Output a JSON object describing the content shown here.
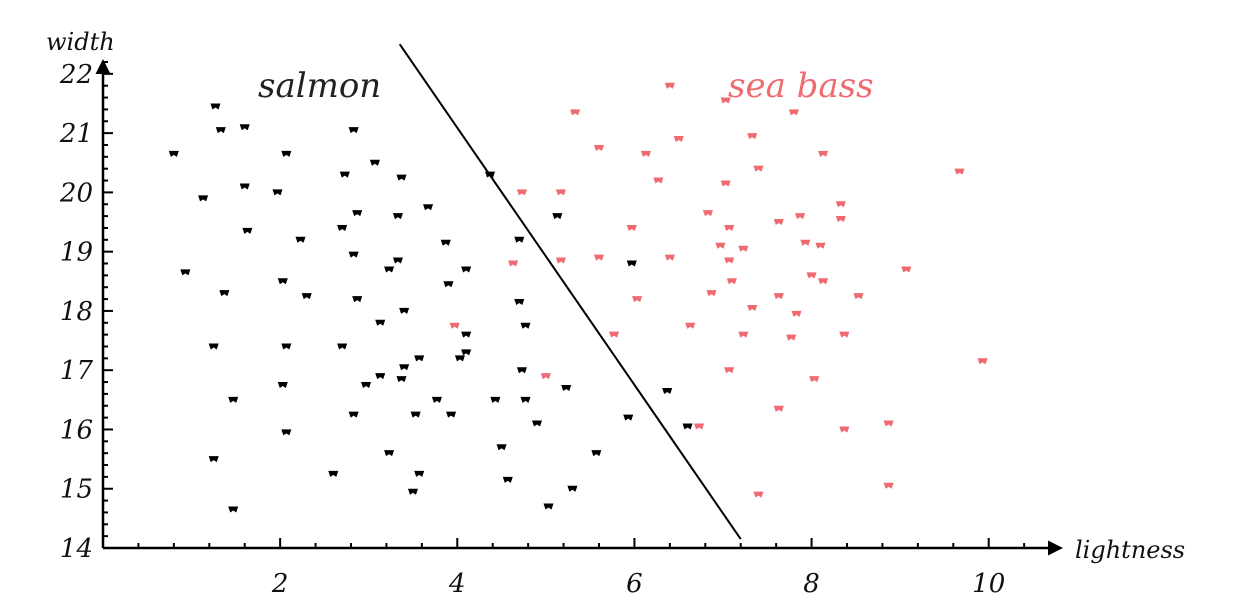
{
  "chart_data": {
    "type": "scatter",
    "xlabel": "lightness",
    "ylabel": "width",
    "xlim": [
      0,
      10.5
    ],
    "ylim": [
      14,
      22.2
    ],
    "xticks": [
      2,
      4,
      6,
      8,
      10
    ],
    "yticks": [
      14,
      15,
      16,
      17,
      18,
      19,
      20,
      21,
      22
    ],
    "annotations": [
      {
        "text": "salmon",
        "color": "#222222"
      },
      {
        "text": "sea bass",
        "color": "#f06a72"
      }
    ],
    "decision_boundary": {
      "x1": 3.35,
      "y1": 22.5,
      "x2": 7.2,
      "y2": 14.15
    },
    "series": [
      {
        "color": "#000000",
        "points": [
          [
            1.27,
            21.45
          ],
          [
            1.33,
            21.05
          ],
          [
            1.6,
            21.1
          ],
          [
            0.8,
            20.65
          ],
          [
            1.13,
            19.9
          ],
          [
            1.6,
            20.1
          ],
          [
            1.63,
            19.35
          ],
          [
            0.93,
            18.65
          ],
          [
            1.37,
            18.3
          ],
          [
            1.25,
            17.4
          ],
          [
            1.47,
            16.5
          ],
          [
            1.25,
            15.5
          ],
          [
            1.47,
            14.65
          ],
          [
            2.07,
            20.65
          ],
          [
            1.97,
            20.0
          ],
          [
            2.23,
            19.2
          ],
          [
            2.03,
            18.5
          ],
          [
            2.3,
            18.25
          ],
          [
            2.07,
            17.4
          ],
          [
            2.03,
            16.75
          ],
          [
            2.07,
            15.95
          ],
          [
            2.6,
            15.25
          ],
          [
            2.83,
            21.05
          ],
          [
            2.73,
            20.3
          ],
          [
            2.87,
            19.65
          ],
          [
            2.7,
            19.4
          ],
          [
            2.83,
            18.95
          ],
          [
            2.87,
            18.2
          ],
          [
            2.7,
            17.4
          ],
          [
            2.83,
            16.25
          ],
          [
            3.07,
            20.5
          ],
          [
            3.23,
            18.7
          ],
          [
            3.33,
            18.85
          ],
          [
            3.13,
            17.8
          ],
          [
            2.97,
            16.75
          ],
          [
            3.13,
            16.9
          ],
          [
            3.23,
            15.6
          ],
          [
            3.37,
            20.25
          ],
          [
            3.33,
            19.6
          ],
          [
            3.4,
            18.0
          ],
          [
            3.37,
            16.85
          ],
          [
            3.4,
            17.05
          ],
          [
            3.5,
            14.95
          ],
          [
            3.53,
            16.25
          ],
          [
            3.57,
            15.25
          ],
          [
            3.57,
            17.2
          ],
          [
            3.67,
            19.75
          ],
          [
            3.77,
            16.5
          ],
          [
            3.87,
            19.15
          ],
          [
            3.9,
            18.45
          ],
          [
            3.93,
            16.25
          ],
          [
            4.03,
            17.2
          ],
          [
            4.1,
            17.3
          ],
          [
            4.1,
            17.6
          ],
          [
            4.1,
            18.7
          ],
          [
            4.37,
            20.3
          ],
          [
            4.43,
            16.5
          ],
          [
            4.5,
            15.7
          ],
          [
            4.57,
            15.15
          ],
          [
            4.7,
            19.2
          ],
          [
            4.7,
            18.15
          ],
          [
            4.73,
            17.0
          ],
          [
            4.77,
            17.75
          ],
          [
            4.77,
            16.5
          ],
          [
            4.9,
            16.1
          ],
          [
            5.03,
            14.7
          ],
          [
            5.13,
            19.6
          ],
          [
            5.23,
            16.7
          ],
          [
            5.3,
            15.0
          ],
          [
            5.57,
            15.6
          ],
          [
            5.93,
            16.2
          ],
          [
            5.97,
            18.8
          ],
          [
            6.37,
            16.65
          ],
          [
            6.6,
            16.05
          ]
        ]
      },
      {
        "color": "#f06a72",
        "points": [
          [
            6.4,
            21.8
          ],
          [
            7.03,
            21.55
          ],
          [
            7.8,
            21.35
          ],
          [
            5.33,
            21.35
          ],
          [
            5.6,
            20.75
          ],
          [
            6.13,
            20.65
          ],
          [
            6.5,
            20.9
          ],
          [
            7.33,
            20.95
          ],
          [
            8.13,
            20.65
          ],
          [
            7.4,
            20.4
          ],
          [
            6.27,
            20.2
          ],
          [
            7.03,
            20.15
          ],
          [
            9.67,
            20.35
          ],
          [
            4.73,
            20.0
          ],
          [
            5.17,
            20.0
          ],
          [
            6.83,
            19.65
          ],
          [
            7.87,
            19.6
          ],
          [
            8.33,
            19.8
          ],
          [
            5.97,
            19.4
          ],
          [
            7.07,
            19.4
          ],
          [
            7.63,
            19.5
          ],
          [
            8.33,
            19.55
          ],
          [
            6.97,
            19.1
          ],
          [
            7.23,
            19.05
          ],
          [
            7.93,
            19.15
          ],
          [
            8.1,
            19.1
          ],
          [
            4.63,
            18.8
          ],
          [
            5.17,
            18.85
          ],
          [
            5.6,
            18.9
          ],
          [
            6.4,
            18.9
          ],
          [
            7.07,
            18.85
          ],
          [
            8.0,
            18.6
          ],
          [
            9.07,
            18.7
          ],
          [
            6.03,
            18.2
          ],
          [
            6.87,
            18.3
          ],
          [
            7.1,
            18.5
          ],
          [
            7.63,
            18.25
          ],
          [
            8.13,
            18.5
          ],
          [
            8.53,
            18.25
          ],
          [
            3.97,
            17.75
          ],
          [
            5.77,
            17.6
          ],
          [
            6.63,
            17.75
          ],
          [
            7.33,
            18.05
          ],
          [
            7.83,
            17.95
          ],
          [
            7.23,
            17.6
          ],
          [
            7.77,
            17.55
          ],
          [
            8.37,
            17.6
          ],
          [
            9.93,
            17.15
          ],
          [
            5.0,
            16.9
          ],
          [
            7.07,
            17.0
          ],
          [
            8.03,
            16.85
          ],
          [
            7.63,
            16.35
          ],
          [
            6.73,
            16.05
          ],
          [
            8.37,
            16.0
          ],
          [
            8.87,
            16.1
          ],
          [
            7.4,
            14.9
          ],
          [
            8.87,
            15.05
          ]
        ]
      }
    ]
  }
}
